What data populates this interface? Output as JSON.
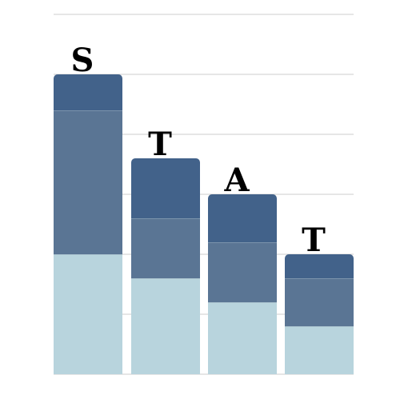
{
  "logo": {
    "letters": [
      "S",
      "T",
      "A",
      "T"
    ],
    "stacks": [
      {
        "segments": [
          3,
          3,
          6,
          2
        ]
      },
      {
        "segments": [
          3,
          3,
          3,
          0
        ]
      },
      {
        "segments": [
          3,
          3,
          2,
          0
        ]
      },
      {
        "segments": [
          2,
          2,
          1,
          0
        ]
      }
    ],
    "gridline_count": 6,
    "colors": {
      "light": "#b8d4dd",
      "medium": "#5a7594",
      "dark": "#42628a",
      "gridline": "#cccccc",
      "letter": "#000000"
    }
  }
}
